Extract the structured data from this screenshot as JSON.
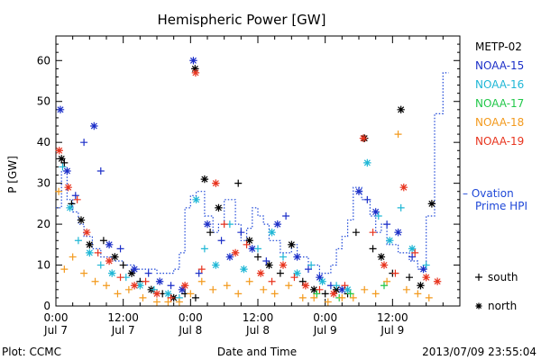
{
  "chart_data": {
    "type": "scatter",
    "title": "Hemispheric Power [GW]",
    "ylabel": "P [GW]",
    "xlabel": "Date and Time",
    "footer_left": "Plot: CCMC",
    "footer_right": "2013/07/09 23:55:04",
    "x_range_hours": [
      0,
      72
    ],
    "ylim": [
      0,
      66
    ],
    "y_ticks": [
      0,
      10,
      20,
      30,
      40,
      50,
      60
    ],
    "x_ticks": [
      {
        "h": 0,
        "time": "0:00",
        "date": "Jul 7"
      },
      {
        "h": 12,
        "time": "12:00",
        "date": "Jul 7"
      },
      {
        "h": 24,
        "time": "0:00",
        "date": "Jul 8"
      },
      {
        "h": 36,
        "time": "12:00",
        "date": "Jul 8"
      },
      {
        "h": 48,
        "time": "0:00",
        "date": "Jul 9"
      },
      {
        "h": 60,
        "time": "12:00",
        "date": "Jul 9"
      }
    ],
    "legend_placement": "right",
    "marker_legend": [
      {
        "symbol": "+",
        "label": "south"
      },
      {
        "symbol": "*",
        "label": "north"
      }
    ],
    "series": [
      {
        "name": "METP-02",
        "color": "#000000",
        "points": [
          [
            1.0,
            36,
            "n"
          ],
          [
            1.5,
            35,
            "+"
          ],
          [
            2.8,
            25,
            "+"
          ],
          [
            4.5,
            21,
            "n"
          ],
          [
            6.0,
            15,
            "n"
          ],
          [
            8.5,
            16,
            "+"
          ],
          [
            10.5,
            12,
            "n"
          ],
          [
            12.0,
            10,
            "+"
          ],
          [
            13.5,
            8,
            "n"
          ],
          [
            15.0,
            6,
            "+"
          ],
          [
            17.0,
            4,
            "n"
          ],
          [
            19.0,
            3,
            "+"
          ],
          [
            21.0,
            2,
            "n"
          ],
          [
            23.0,
            3,
            "+"
          ],
          [
            24.8,
            58,
            "n"
          ],
          [
            24.9,
            2,
            "+"
          ],
          [
            26.5,
            31,
            "n"
          ],
          [
            27.5,
            18,
            "+"
          ],
          [
            29.0,
            24,
            "n"
          ],
          [
            32.5,
            30,
            "+"
          ],
          [
            34.5,
            16,
            "n"
          ],
          [
            36.0,
            12,
            "+"
          ],
          [
            38.0,
            10,
            "n"
          ],
          [
            40.0,
            8,
            "+"
          ],
          [
            42.0,
            15,
            "n"
          ],
          [
            44.0,
            6,
            "+"
          ],
          [
            46.0,
            4,
            "n"
          ],
          [
            48.0,
            3,
            "+"
          ],
          [
            50.0,
            4,
            "n"
          ],
          [
            52.0,
            3,
            "+"
          ],
          [
            53.5,
            18,
            "+"
          ],
          [
            55.0,
            41,
            "n"
          ],
          [
            56.5,
            14,
            "+"
          ],
          [
            58.0,
            12,
            "n"
          ],
          [
            60.0,
            8,
            "+"
          ],
          [
            61.5,
            48,
            "n"
          ],
          [
            63.0,
            7,
            "+"
          ],
          [
            65.0,
            5,
            "n"
          ],
          [
            67.0,
            25,
            "n"
          ]
        ]
      },
      {
        "name": "NOAA-15",
        "color": "#1c2fc8",
        "points": [
          [
            0.8,
            48,
            "n"
          ],
          [
            2.0,
            33,
            "n"
          ],
          [
            3.5,
            27,
            "+"
          ],
          [
            5.0,
            40,
            "+"
          ],
          [
            6.8,
            44,
            "n"
          ],
          [
            8.0,
            33,
            "+"
          ],
          [
            9.5,
            15,
            "n"
          ],
          [
            11.5,
            14,
            "+"
          ],
          [
            14.0,
            9,
            "n"
          ],
          [
            16.5,
            8,
            "+"
          ],
          [
            18.5,
            6,
            "n"
          ],
          [
            20.5,
            5,
            "+"
          ],
          [
            22.5,
            4,
            "n"
          ],
          [
            24.5,
            60,
            "n"
          ],
          [
            25.5,
            8,
            "+"
          ],
          [
            27.0,
            20,
            "n"
          ],
          [
            29.5,
            16,
            "+"
          ],
          [
            31.0,
            12,
            "n"
          ],
          [
            33.0,
            18,
            "+"
          ],
          [
            35.0,
            14,
            "n"
          ],
          [
            37.5,
            11,
            "+"
          ],
          [
            39.5,
            20,
            "n"
          ],
          [
            41.0,
            22,
            "+"
          ],
          [
            43.0,
            12,
            "n"
          ],
          [
            45.0,
            9,
            "+"
          ],
          [
            47.0,
            7,
            "n"
          ],
          [
            49.0,
            5,
            "+"
          ],
          [
            51.0,
            4,
            "n"
          ],
          [
            54.0,
            28,
            "n"
          ],
          [
            55.5,
            26,
            "+"
          ],
          [
            57.0,
            23,
            "n"
          ],
          [
            59.0,
            20,
            "+"
          ],
          [
            61.0,
            18,
            "n"
          ],
          [
            63.5,
            12,
            "+"
          ],
          [
            65.5,
            9,
            "n"
          ]
        ]
      },
      {
        "name": "NOAA-16",
        "color": "#1fb7d6",
        "points": [
          [
            1.2,
            34,
            "+"
          ],
          [
            2.5,
            24,
            "n"
          ],
          [
            4.0,
            16,
            "+"
          ],
          [
            6.0,
            13,
            "n"
          ],
          [
            8.0,
            10,
            "+"
          ],
          [
            10.0,
            8,
            "n"
          ],
          [
            12.5,
            7,
            "+"
          ],
          [
            15.0,
            5,
            "n"
          ],
          [
            17.5,
            4,
            "+"
          ],
          [
            20.0,
            3,
            "n"
          ],
          [
            22.0,
            2,
            "+"
          ],
          [
            25.0,
            26,
            "n"
          ],
          [
            26.5,
            14,
            "+"
          ],
          [
            28.5,
            10,
            "n"
          ],
          [
            31.0,
            20,
            "+"
          ],
          [
            33.5,
            9,
            "n"
          ],
          [
            36.0,
            14,
            "+"
          ],
          [
            38.5,
            18,
            "n"
          ],
          [
            40.5,
            12,
            "+"
          ],
          [
            43.0,
            8,
            "n"
          ],
          [
            45.5,
            10,
            "+"
          ],
          [
            47.5,
            6,
            "n"
          ],
          [
            50.0,
            5,
            "+"
          ],
          [
            52.0,
            4,
            "n"
          ],
          [
            55.5,
            35,
            "n"
          ],
          [
            57.5,
            22,
            "+"
          ],
          [
            59.5,
            16,
            "n"
          ],
          [
            61.5,
            24,
            "+"
          ],
          [
            63.5,
            14,
            "n"
          ],
          [
            66.0,
            10,
            "+"
          ]
        ]
      },
      {
        "name": "NOAA-17",
        "color": "#22c84a",
        "points": [
          [
            46.5,
            3,
            "+"
          ],
          [
            50.5,
            2,
            "+"
          ],
          [
            52.5,
            3,
            "+"
          ],
          [
            58.5,
            5,
            "+"
          ]
        ]
      },
      {
        "name": "NOAA-18",
        "color": "#f39a1d",
        "points": [
          [
            0.5,
            28,
            "+"
          ],
          [
            1.5,
            9,
            "+"
          ],
          [
            3.0,
            12,
            "+"
          ],
          [
            5.0,
            8,
            "+"
          ],
          [
            7.0,
            6,
            "+"
          ],
          [
            9.0,
            5,
            "+"
          ],
          [
            11.0,
            3,
            "+"
          ],
          [
            13.0,
            4,
            "+"
          ],
          [
            15.5,
            2,
            "+"
          ],
          [
            18.0,
            1,
            "+"
          ],
          [
            20.0,
            1,
            "+"
          ],
          [
            22.0,
            1,
            "+"
          ],
          [
            24.0,
            3,
            "+"
          ],
          [
            26.0,
            6,
            "+"
          ],
          [
            28.0,
            4,
            "+"
          ],
          [
            30.5,
            5,
            "+"
          ],
          [
            32.5,
            3,
            "+"
          ],
          [
            34.5,
            6,
            "+"
          ],
          [
            37.0,
            4,
            "+"
          ],
          [
            39.0,
            3,
            "+"
          ],
          [
            41.5,
            5,
            "+"
          ],
          [
            44.0,
            2,
            "+"
          ],
          [
            46.0,
            2,
            "+"
          ],
          [
            48.5,
            1,
            "+"
          ],
          [
            51.0,
            2,
            "+"
          ],
          [
            53.0,
            2,
            "+"
          ],
          [
            55.0,
            4,
            "+"
          ],
          [
            57.0,
            3,
            "+"
          ],
          [
            59.0,
            6,
            "+"
          ],
          [
            61.0,
            42,
            "+"
          ],
          [
            62.5,
            4,
            "+"
          ],
          [
            64.5,
            3,
            "+"
          ],
          [
            66.5,
            2,
            "+"
          ]
        ]
      },
      {
        "name": "NOAA-19",
        "color": "#e8341e",
        "points": [
          [
            0.6,
            38,
            "n"
          ],
          [
            2.2,
            29,
            "n"
          ],
          [
            3.8,
            26,
            "+"
          ],
          [
            5.5,
            18,
            "n"
          ],
          [
            7.5,
            13,
            "+"
          ],
          [
            9.5,
            11,
            "n"
          ],
          [
            11.5,
            7,
            "+"
          ],
          [
            14.0,
            5,
            "n"
          ],
          [
            16.0,
            6,
            "+"
          ],
          [
            18.0,
            3,
            "n"
          ],
          [
            20.5,
            2,
            "+"
          ],
          [
            23.0,
            5,
            "n"
          ],
          [
            24.9,
            57,
            "n"
          ],
          [
            26.0,
            9,
            "+"
          ],
          [
            28.5,
            30,
            "n"
          ],
          [
            30.0,
            20,
            "+"
          ],
          [
            32.0,
            13,
            "n"
          ],
          [
            34.0,
            15,
            "+"
          ],
          [
            36.5,
            8,
            "n"
          ],
          [
            38.5,
            6,
            "+"
          ],
          [
            40.5,
            10,
            "n"
          ],
          [
            42.5,
            7,
            "+"
          ],
          [
            44.5,
            5,
            "n"
          ],
          [
            47.0,
            4,
            "+"
          ],
          [
            49.5,
            3,
            "n"
          ],
          [
            51.5,
            5,
            "+"
          ],
          [
            54.8,
            41,
            "n"
          ],
          [
            56.5,
            18,
            "+"
          ],
          [
            58.5,
            10,
            "n"
          ],
          [
            60.5,
            8,
            "+"
          ],
          [
            62.0,
            29,
            "n"
          ],
          [
            64.0,
            13,
            "+"
          ],
          [
            66.0,
            7,
            "n"
          ],
          [
            68.0,
            6,
            "n"
          ]
        ]
      }
    ],
    "ovation": {
      "name": "– Ovation Prime HPI",
      "color": "#1f48d8",
      "points": [
        [
          0,
          24
        ],
        [
          1,
          24
        ],
        [
          1,
          33
        ],
        [
          2,
          33
        ],
        [
          2,
          26
        ],
        [
          3,
          26
        ],
        [
          3,
          23
        ],
        [
          4,
          23
        ],
        [
          4,
          20
        ],
        [
          5,
          20
        ],
        [
          5,
          17
        ],
        [
          6.5,
          17
        ],
        [
          6.5,
          14
        ],
        [
          8,
          14
        ],
        [
          8,
          12
        ],
        [
          10,
          12
        ],
        [
          10,
          11
        ],
        [
          12,
          11
        ],
        [
          12,
          10
        ],
        [
          14,
          10
        ],
        [
          14,
          9
        ],
        [
          18,
          9
        ],
        [
          18,
          8
        ],
        [
          21,
          8
        ],
        [
          21,
          9
        ],
        [
          22,
          9
        ],
        [
          22,
          13
        ],
        [
          23,
          13
        ],
        [
          23,
          24
        ],
        [
          24,
          24
        ],
        [
          24,
          27
        ],
        [
          25,
          27
        ],
        [
          25,
          28
        ],
        [
          26.5,
          28
        ],
        [
          26.5,
          22
        ],
        [
          28,
          22
        ],
        [
          28,
          18
        ],
        [
          29,
          18
        ],
        [
          29,
          20
        ],
        [
          30,
          20
        ],
        [
          30,
          26
        ],
        [
          32,
          26
        ],
        [
          32,
          20
        ],
        [
          33,
          20
        ],
        [
          33,
          16
        ],
        [
          34,
          16
        ],
        [
          34,
          19
        ],
        [
          35,
          19
        ],
        [
          35,
          24
        ],
        [
          36,
          24
        ],
        [
          36,
          22
        ],
        [
          37,
          22
        ],
        [
          37,
          20
        ],
        [
          38,
          20
        ],
        [
          38,
          16
        ],
        [
          40,
          16
        ],
        [
          40,
          13
        ],
        [
          42,
          13
        ],
        [
          42,
          15
        ],
        [
          43,
          15
        ],
        [
          43,
          12
        ],
        [
          45,
          12
        ],
        [
          45,
          10
        ],
        [
          47,
          10
        ],
        [
          47,
          8
        ],
        [
          49,
          8
        ],
        [
          49,
          10
        ],
        [
          50,
          10
        ],
        [
          50,
          14
        ],
        [
          51,
          14
        ],
        [
          51,
          17
        ],
        [
          52,
          17
        ],
        [
          52,
          21
        ],
        [
          53,
          21
        ],
        [
          53,
          29
        ],
        [
          54.5,
          29
        ],
        [
          54.5,
          26
        ],
        [
          56,
          26
        ],
        [
          56,
          22
        ],
        [
          57,
          22
        ],
        [
          57,
          18
        ],
        [
          58,
          18
        ],
        [
          58,
          20
        ],
        [
          59,
          20
        ],
        [
          59,
          15
        ],
        [
          61,
          15
        ],
        [
          61,
          13
        ],
        [
          63,
          13
        ],
        [
          63,
          11
        ],
        [
          64.5,
          11
        ],
        [
          64.5,
          9
        ],
        [
          66,
          9
        ],
        [
          66,
          22
        ],
        [
          67.5,
          22
        ],
        [
          67.5,
          47
        ],
        [
          69,
          47
        ],
        [
          69,
          57
        ],
        [
          70,
          57
        ]
      ]
    }
  }
}
